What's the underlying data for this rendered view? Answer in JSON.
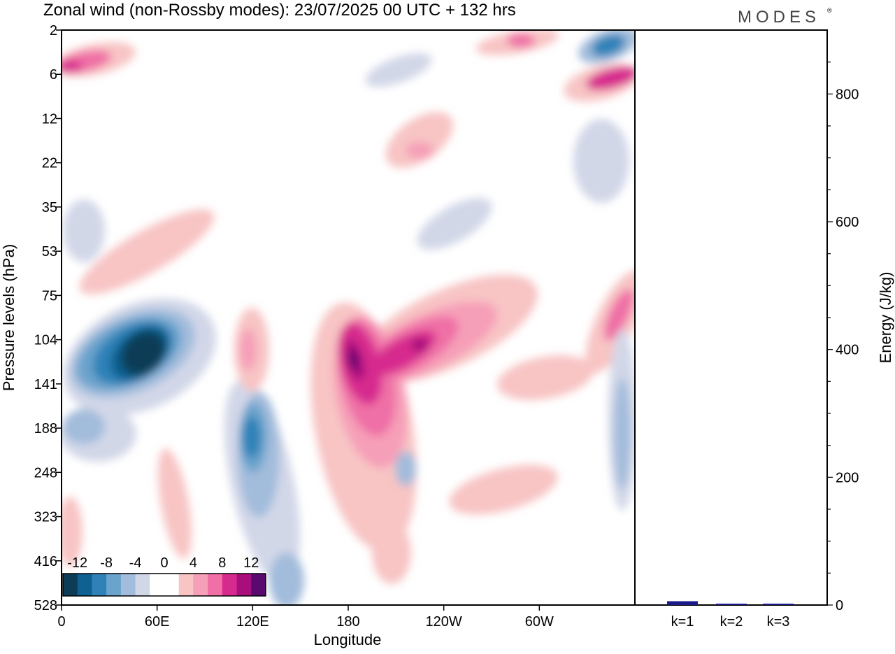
{
  "title": "Zonal wind (non-Rossby modes):  23/07/2025  00 UTC  + 132 hrs",
  "logo": "MODES",
  "logo_mark": "®",
  "chart_data": [
    {
      "type": "heatmap",
      "title": "Zonal wind (non-Rossby modes):  23/07/2025  00 UTC  + 132 hrs",
      "xlabel": "Longitude",
      "ylabel": "Pressure levels (hPa)",
      "x_ticks": [
        "0",
        "60E",
        "120E",
        "180",
        "120W",
        "60W"
      ],
      "x_tick_lon": [
        0,
        60,
        120,
        180,
        240,
        300
      ],
      "xlim": [
        0,
        360
      ],
      "y_ticks": [
        "2",
        "6",
        "12",
        "22",
        "35",
        "53",
        "75",
        "104",
        "141",
        "188",
        "248",
        "323",
        "416",
        "528"
      ],
      "colorbar": {
        "labels": [
          "-12",
          "-8",
          "-4",
          "0",
          "4",
          "8",
          "12"
        ],
        "colors": [
          "#0d3c57",
          "#0e6190",
          "#2e82b8",
          "#6aa3cc",
          "#a2bcdb",
          "#d2d7e8",
          "#ffffff",
          "#ffffff",
          "#f8c4c4",
          "#f69fb8",
          "#ef6fa6",
          "#d72a8e",
          "#a80f7c",
          "#5a0a6e"
        ]
      },
      "features": [
        {
          "sign": "negative",
          "lon": 60,
          "level": "141",
          "peak": -14
        },
        {
          "sign": "negative",
          "lon": 124,
          "level": "188",
          "peak": -10
        },
        {
          "sign": "positive",
          "lon": 185,
          "level": "141",
          "peak": 14
        },
        {
          "sign": "positive",
          "lon": 225,
          "level": "104",
          "peak": 12
        },
        {
          "sign": "positive",
          "lon": 5,
          "level": "6",
          "peak": 10
        },
        {
          "sign": "positive",
          "lon": 350,
          "level": "6",
          "peak": 10
        },
        {
          "sign": "negative",
          "lon": 345,
          "level": "2",
          "peak": -8
        }
      ]
    },
    {
      "type": "bar",
      "categories": [
        "k=1",
        "k=2",
        "k=3"
      ],
      "values": [
        6,
        2,
        2
      ],
      "ylabel": "Energy (J/kg)",
      "ylim": [
        0,
        900
      ],
      "y_ticks": [
        0,
        200,
        400,
        600,
        800
      ],
      "bar_color": "#1a1a8c"
    }
  ]
}
